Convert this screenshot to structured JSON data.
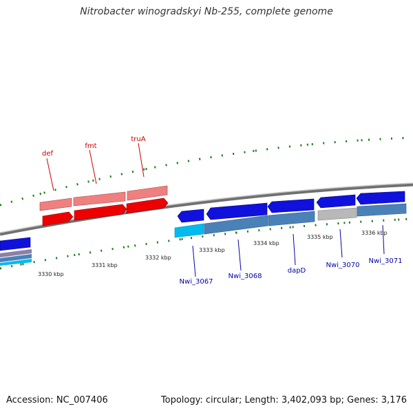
{
  "title": "Nitrobacter winogradskyi Nb-255, complete genome",
  "footer": {
    "accession": "Accession: NC_007406",
    "summary": "Topology: circular; Length: 3,402,093 bp; Genes: 3,176"
  },
  "colors": {
    "backbone": "#888888",
    "tick": "#1e7a1e",
    "forward_gene": "#ee0000",
    "forward_cds": "#ee8080",
    "reverse_gene": "#1111dd",
    "reverse_cds": "#4a82b8",
    "reverse_cds_alt": "#00bbee",
    "gray_feature": "#b8b8b8",
    "forward_label": "#cc0000",
    "reverse_label": "#0000aa"
  },
  "scale_labels": [
    "3330 kbp",
    "3331 kbp",
    "3332 kbp",
    "3333 kbp",
    "3334 kbp",
    "3335 kbp",
    "3336 kbp"
  ],
  "forward_genes": [
    {
      "name": "def",
      "id": "def"
    },
    {
      "name": "fmt",
      "id": "fmt"
    },
    {
      "name": "truA",
      "id": "truA"
    }
  ],
  "reverse_genes": [
    {
      "name": "Nwi_3067",
      "id": "nwi3067"
    },
    {
      "name": "Nwi_3068",
      "id": "nwi3068"
    },
    {
      "name": "dapD",
      "id": "dapD"
    },
    {
      "name": "Nwi_3070",
      "id": "nwi3070"
    },
    {
      "name": "Nwi_3071",
      "id": "nwi3071"
    }
  ]
}
